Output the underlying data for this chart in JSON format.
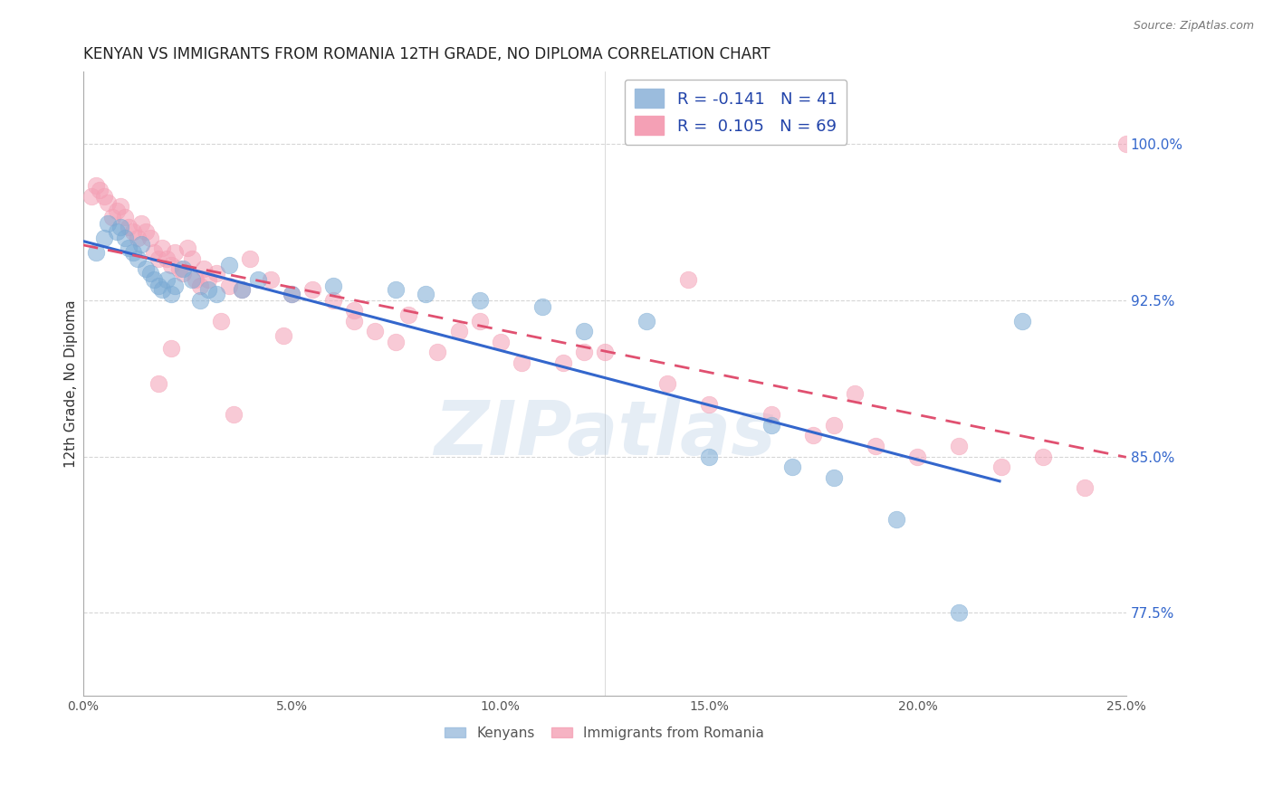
{
  "title": "KENYAN VS IMMIGRANTS FROM ROMANIA 12TH GRADE, NO DIPLOMA CORRELATION CHART",
  "source": "Source: ZipAtlas.com",
  "xlabel_vals": [
    0.0,
    5.0,
    10.0,
    15.0,
    20.0,
    25.0
  ],
  "ylabel_vals": [
    77.5,
    85.0,
    92.5,
    100.0
  ],
  "ylabel": "12th Grade, No Diploma",
  "xlim": [
    0.0,
    25.0
  ],
  "ylim": [
    73.5,
    103.5
  ],
  "watermark": "ZIPatlas",
  "kenyan_color": "#7aaad4",
  "romania_color": "#f4a0b5",
  "background_color": "#ffffff",
  "grid_color": "#cccccc",
  "title_fontsize": 12,
  "axis_label_fontsize": 11,
  "tick_fontsize": 10,
  "kenyan_x": [
    0.3,
    0.5,
    0.6,
    0.8,
    0.9,
    1.0,
    1.1,
    1.2,
    1.3,
    1.4,
    1.5,
    1.6,
    1.7,
    1.8,
    1.9,
    2.0,
    2.1,
    2.2,
    2.4,
    2.6,
    2.8,
    3.0,
    3.2,
    3.5,
    3.8,
    4.2,
    5.0,
    6.0,
    7.5,
    8.2,
    9.5,
    11.0,
    12.0,
    13.5,
    15.0,
    16.5,
    17.0,
    18.0,
    19.5,
    21.0,
    22.5
  ],
  "kenyan_y": [
    94.8,
    95.5,
    96.2,
    95.8,
    96.0,
    95.5,
    95.0,
    94.8,
    94.5,
    95.2,
    94.0,
    93.8,
    93.5,
    93.2,
    93.0,
    93.5,
    92.8,
    93.2,
    94.0,
    93.5,
    92.5,
    93.0,
    92.8,
    94.2,
    93.0,
    93.5,
    92.8,
    93.2,
    93.0,
    92.8,
    92.5,
    92.2,
    91.0,
    91.5,
    85.0,
    86.5,
    84.5,
    84.0,
    82.0,
    77.5,
    91.5
  ],
  "romania_x": [
    0.2,
    0.3,
    0.4,
    0.5,
    0.6,
    0.7,
    0.8,
    0.9,
    1.0,
    1.1,
    1.2,
    1.3,
    1.4,
    1.5,
    1.6,
    1.7,
    1.8,
    1.9,
    2.0,
    2.1,
    2.2,
    2.3,
    2.4,
    2.5,
    2.6,
    2.7,
    2.8,
    2.9,
    3.0,
    3.2,
    3.5,
    3.8,
    4.0,
    4.5,
    5.0,
    5.5,
    6.0,
    6.5,
    7.0,
    7.5,
    8.5,
    9.0,
    10.0,
    11.5,
    12.5,
    14.0,
    15.0,
    16.5,
    17.5,
    18.0,
    19.0,
    20.0,
    21.0,
    22.0,
    23.0,
    24.0,
    25.0,
    6.5,
    9.5,
    12.0,
    14.5,
    18.5,
    3.3,
    4.8,
    7.8,
    10.5,
    3.6,
    2.1,
    1.8
  ],
  "romania_y": [
    97.5,
    98.0,
    97.8,
    97.5,
    97.2,
    96.5,
    96.8,
    97.0,
    96.5,
    96.0,
    95.8,
    95.5,
    96.2,
    95.8,
    95.5,
    94.8,
    94.5,
    95.0,
    94.5,
    94.2,
    94.8,
    94.0,
    93.8,
    95.0,
    94.5,
    93.5,
    93.2,
    94.0,
    93.5,
    93.8,
    93.2,
    93.0,
    94.5,
    93.5,
    92.8,
    93.0,
    92.5,
    91.5,
    91.0,
    90.5,
    90.0,
    91.0,
    90.5,
    89.5,
    90.0,
    88.5,
    87.5,
    87.0,
    86.0,
    86.5,
    85.5,
    85.0,
    85.5,
    84.5,
    85.0,
    83.5,
    100.0,
    92.0,
    91.5,
    90.0,
    93.5,
    88.0,
    91.5,
    90.8,
    91.8,
    89.5,
    87.0,
    90.2,
    88.5
  ]
}
